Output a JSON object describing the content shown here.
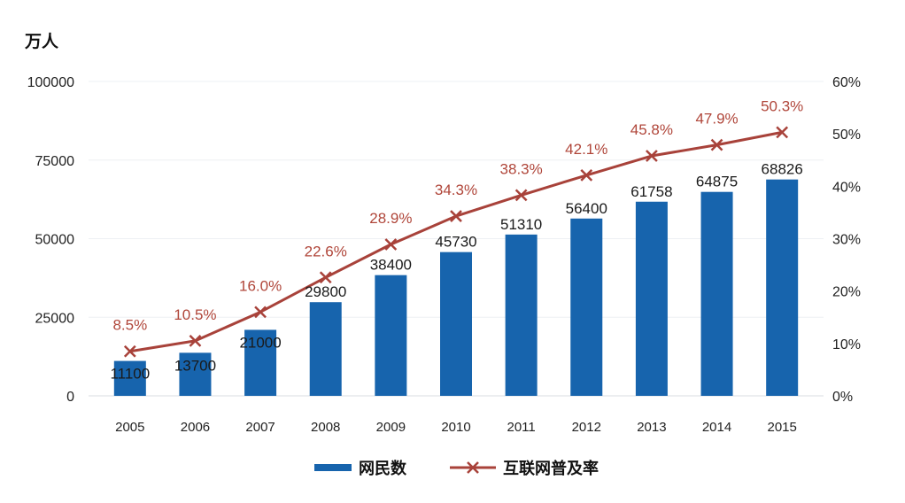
{
  "chart_data": {
    "type": "bar",
    "categories": [
      "2005",
      "2006",
      "2007",
      "2008",
      "2009",
      "2010",
      "2011",
      "2012",
      "2013",
      "2014",
      "2015"
    ],
    "series": [
      {
        "name": "网民数",
        "type": "bar",
        "axis": "left",
        "color": "#1764ad",
        "values": [
          11100,
          13700,
          21000,
          29800,
          38400,
          45730,
          51310,
          56400,
          61758,
          64875,
          68826
        ],
        "labels": [
          "11100",
          "13700",
          "21000",
          "29800",
          "38400",
          "45730",
          "51310",
          "56400",
          "61758",
          "64875",
          "68826"
        ]
      },
      {
        "name": "互联网普及率",
        "type": "line",
        "axis": "right",
        "color": "#a8423a",
        "marker": "x",
        "values": [
          8.5,
          10.5,
          16.0,
          22.6,
          28.9,
          34.3,
          38.3,
          42.1,
          45.8,
          47.9,
          50.3
        ],
        "labels": [
          "8.5%",
          "10.5%",
          "16.0%",
          "22.6%",
          "28.9%",
          "34.3%",
          "38.3%",
          "42.1%",
          "45.8%",
          "47.9%",
          "50.3%"
        ]
      }
    ],
    "y_left": {
      "unit_label": "万人",
      "ylim": [
        0,
        100000
      ],
      "ticks": [
        0,
        25000,
        50000,
        75000,
        100000
      ],
      "tick_labels": [
        "0",
        "25000",
        "50000",
        "75000",
        "100000"
      ]
    },
    "y_right": {
      "ylim": [
        0,
        60
      ],
      "ticks": [
        0,
        10,
        20,
        30,
        40,
        50,
        60
      ],
      "tick_labels": [
        "0%",
        "10%",
        "20%",
        "30%",
        "40%",
        "50%",
        "60%"
      ]
    },
    "grid": true,
    "legend": {
      "position": "bottom",
      "items": [
        "网民数",
        "互联网普及率"
      ]
    }
  }
}
